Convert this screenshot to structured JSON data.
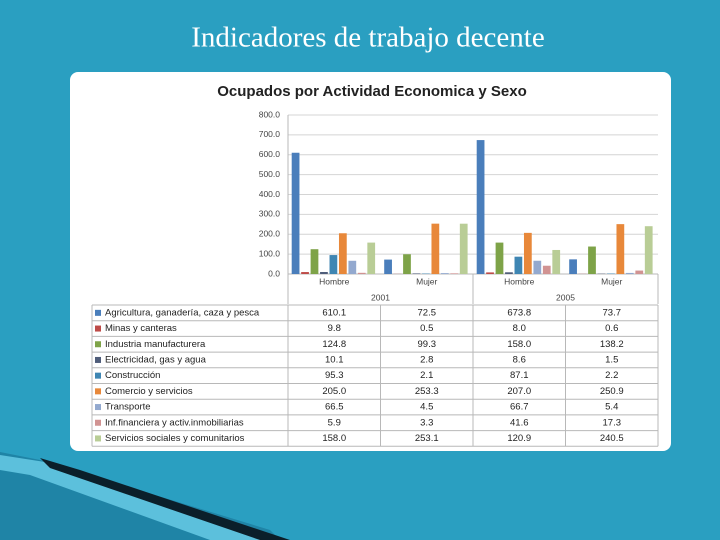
{
  "slide_title": "Indicadores de trabajo decente",
  "chart_data": {
    "type": "bar",
    "title": "Ocupados por Actividad Economica y Sexo",
    "categories": [
      "Hombre",
      "Mujer",
      "Hombre",
      "Mujer"
    ],
    "x_groups": [
      "2001",
      "2005"
    ],
    "ylim": [
      0,
      800
    ],
    "yticks": [
      {
        "value": 0,
        "label": "0.0"
      },
      {
        "value": 100,
        "label": "100.0"
      },
      {
        "value": 200,
        "label": "200.0"
      },
      {
        "value": 300,
        "label": "300.0"
      },
      {
        "value": 400,
        "label": "400.0"
      },
      {
        "value": 500,
        "label": "500.0"
      },
      {
        "value": 600,
        "label": "600.0"
      },
      {
        "value": 700,
        "label": "700.0"
      },
      {
        "value": 800,
        "label": "800.0"
      }
    ],
    "grid": true,
    "series": [
      {
        "name": "Agricultura, ganadería, caza y pesca",
        "color": "#4a7ebb",
        "values": [
          610.1,
          72.5,
          673.8,
          73.7
        ],
        "value_labels": [
          "610.1",
          "72.5",
          "673.8",
          "73.7"
        ]
      },
      {
        "name": "Minas y canteras",
        "color": "#be4b48",
        "values": [
          9.8,
          0.5,
          8.0,
          0.6
        ],
        "value_labels": [
          "9.8",
          "0.5",
          "8.0",
          "0.6"
        ]
      },
      {
        "name": "Industria manufacturera",
        "color": "#7ea348",
        "values": [
          124.8,
          99.3,
          158.0,
          138.2
        ],
        "value_labels": [
          "124.8",
          "99.3",
          "158.0",
          "138.2"
        ]
      },
      {
        "name": "Electricidad, gas y agua",
        "color": "#4f5d7a",
        "values": [
          10.1,
          2.8,
          8.6,
          1.5
        ],
        "value_labels": [
          "10.1",
          "2.8",
          "8.6",
          "1.5"
        ]
      },
      {
        "name": "Construcción",
        "color": "#3f86b3",
        "values": [
          95.3,
          2.1,
          87.1,
          2.2
        ],
        "value_labels": [
          "95.3",
          "2.1",
          "87.1",
          "2.2"
        ]
      },
      {
        "name": "Comercio y servicios",
        "color": "#e8883a",
        "values": [
          205.0,
          253.3,
          207.0,
          250.9
        ],
        "value_labels": [
          "205.0",
          "253.3",
          "207.0",
          "250.9"
        ]
      },
      {
        "name": "Transporte",
        "color": "#93a9cf",
        "values": [
          66.5,
          4.5,
          66.7,
          5.4
        ],
        "value_labels": [
          "66.5",
          "4.5",
          "66.7",
          "5.4"
        ]
      },
      {
        "name": "Inf.financiera y activ.inmobiliarias",
        "color": "#d19392",
        "values": [
          5.9,
          3.3,
          41.6,
          17.3
        ],
        "value_labels": [
          "5.9",
          "3.3",
          "41.6",
          "17.3"
        ]
      },
      {
        "name": "Servicios sociales y comunitarios",
        "color": "#b9cd96",
        "values": [
          158.0,
          253.1,
          120.9,
          240.5
        ],
        "value_labels": [
          "158.0",
          "253.1",
          "120.9",
          "240.5"
        ]
      }
    ]
  }
}
